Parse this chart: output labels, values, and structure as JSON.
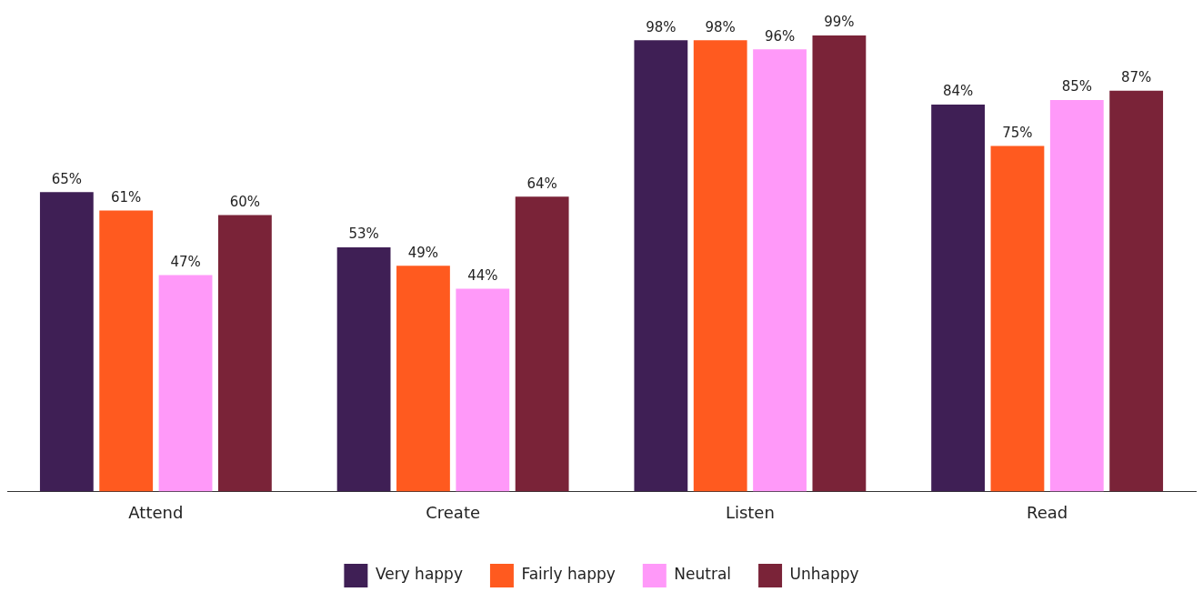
{
  "chart_data": {
    "type": "bar",
    "categories": [
      "Attend",
      "Create",
      "Listen",
      "Read"
    ],
    "series": [
      {
        "name": "Very happy",
        "color": "#3f1f55",
        "values": [
          65,
          53,
          98,
          84
        ],
        "value_labels": [
          "65%",
          "53%",
          "98%",
          "84%"
        ]
      },
      {
        "name": "Fairly happy",
        "color": "#ff5a1f",
        "values": [
          61,
          49,
          98,
          75
        ],
        "value_labels": [
          "61%",
          "49%",
          "98%",
          "75%"
        ]
      },
      {
        "name": "Neutral",
        "color": "#ff99f9",
        "values": [
          47,
          44,
          96,
          85
        ],
        "value_labels": [
          "47%",
          "44%",
          "96%",
          "85%"
        ]
      },
      {
        "name": "Unhappy",
        "color": "#7a2338",
        "values": [
          60,
          64,
          99,
          87
        ],
        "value_labels": [
          "60%",
          "64%",
          "99%",
          "87%"
        ]
      }
    ],
    "legend": "bottom",
    "grid": false
  }
}
